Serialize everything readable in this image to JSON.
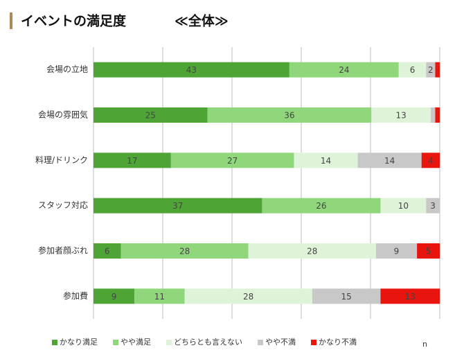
{
  "chart_data": {
    "type": "stacked-barh",
    "title": "イベントの満足度",
    "subtitle": "≪全体≫",
    "categories": [
      "会場の立地",
      "会場の雰囲気",
      "料理/ドリンク",
      "スタッフ対応",
      "参加者顔ぶれ",
      "参加費"
    ],
    "series": [
      {
        "name": "かなり満足",
        "color": "#4ea535",
        "values": [
          43,
          25,
          17,
          37,
          6,
          9
        ]
      },
      {
        "name": "やや満足",
        "color": "#8fd77a",
        "values": [
          24,
          36,
          27,
          26,
          28,
          11
        ]
      },
      {
        "name": "どちらとも言えない",
        "color": "#dff3d9",
        "values": [
          6,
          13,
          14,
          10,
          28,
          28
        ]
      },
      {
        "name": "やや不満",
        "color": "#c8c8c8",
        "values": [
          2,
          1,
          14,
          3,
          9,
          15
        ]
      },
      {
        "name": "かなり不満",
        "color": "#e8150f",
        "values": [
          1,
          1,
          4,
          0,
          5,
          13
        ]
      }
    ],
    "xlim": [
      0,
      76
    ],
    "xticks": [
      0,
      15.2,
      30.4,
      45.6,
      60.8,
      76
    ],
    "grid": true,
    "legend": "bottom",
    "n_label": "n"
  }
}
